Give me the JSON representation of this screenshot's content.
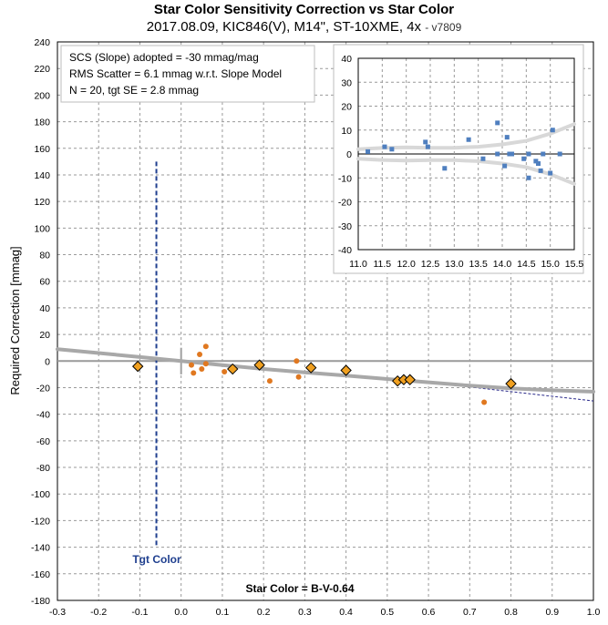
{
  "title": "Star Color Sensitivity Correction vs Star Color",
  "subtitle": "2017.08.09, KIC846(V), M14\", ST-10XME, 4x",
  "version": "- v7809",
  "annotations": {
    "line1": "SCS (Slope) adopted  =  -30 mmag/mag",
    "line2": "RMS Scatter = 6.1 mmag w.r.t. Slope Model",
    "line3": "N = 20,  tgt SE = 2.8 mmag",
    "tgt_color_label": "Tgt Color",
    "xlabel": "Star Color = B-V-0.64"
  },
  "colors": {
    "diamond_fill": "#f0a020",
    "dot": "#e07820",
    "model_curve": "#a8a8a8",
    "tgt_line": "#1f3f8f",
    "inset_point": "#4f7fbf",
    "inset_band": "#d8d8d8"
  },
  "chart_data": [
    {
      "type": "scatter",
      "title": "Star Color Sensitivity Correction vs Star Color",
      "xlabel": "Star Color = B-V-0.64",
      "ylabel": "Required Correction [mmag]",
      "xlim": [
        -0.3,
        1.0
      ],
      "ylim": [
        -180,
        240
      ],
      "xticks": [
        "-0.3",
        "-0.2",
        "-0.1",
        "0.0",
        "0.1",
        "0.2",
        "0.3",
        "0.4",
        "0.5",
        "0.6",
        "0.7",
        "0.8",
        "0.9",
        "1.0"
      ],
      "yticks": [
        "240",
        "220",
        "200",
        "180",
        "160",
        "140",
        "120",
        "100",
        "80",
        "60",
        "40",
        "20",
        "0",
        "-20",
        "-40",
        "-60",
        "-80",
        "-100",
        "-120",
        "-140",
        "-160",
        "-180"
      ],
      "grid": true,
      "tgt_color_x": -0.06,
      "series": [
        {
          "marker": "diamond",
          "points": [
            [
              -0.105,
              -4
            ],
            [
              0.125,
              -6
            ],
            [
              0.19,
              -3
            ],
            [
              0.315,
              -5
            ],
            [
              0.4,
              -7
            ],
            [
              0.525,
              -15
            ],
            [
              0.54,
              -14
            ],
            [
              0.555,
              -14
            ],
            [
              0.8,
              -17
            ]
          ]
        },
        {
          "marker": "dot",
          "points": [
            [
              0.025,
              -3
            ],
            [
              0.03,
              -9
            ],
            [
              0.045,
              5
            ],
            [
              0.05,
              -6
            ],
            [
              0.06,
              11
            ],
            [
              0.06,
              -2
            ],
            [
              0.105,
              -8
            ],
            [
              0.215,
              -15
            ],
            [
              0.28,
              0
            ],
            [
              0.285,
              -12
            ],
            [
              0.735,
              -31
            ]
          ]
        }
      ],
      "model_curve": [
        [
          -0.3,
          9
        ],
        [
          -0.2,
          6
        ],
        [
          -0.1,
          3
        ],
        [
          0.0,
          0
        ],
        [
          0.1,
          -3
        ],
        [
          0.2,
          -6
        ],
        [
          0.3,
          -8.5
        ],
        [
          0.4,
          -11
        ],
        [
          0.5,
          -13.5
        ],
        [
          0.6,
          -16
        ],
        [
          0.7,
          -18.5
        ],
        [
          0.8,
          -20.5
        ],
        [
          0.9,
          -22
        ],
        [
          1.0,
          -23
        ]
      ],
      "linear_model": [
        [
          0.6,
          -16
        ],
        [
          1.0,
          -30
        ]
      ]
    },
    {
      "type": "scatter",
      "xlim": [
        11.0,
        15.5
      ],
      "ylim": [
        -40,
        40
      ],
      "xticks": [
        "11.0",
        "11.5",
        "12.0",
        "12.5",
        "13.0",
        "13.5",
        "14.0",
        "14.5",
        "15.0",
        "15.5"
      ],
      "yticks": [
        "40",
        "30",
        "20",
        "10",
        "0",
        "-10",
        "-20",
        "-30",
        "-40"
      ],
      "grid": true,
      "points": [
        [
          11.2,
          1
        ],
        [
          11.55,
          3
        ],
        [
          11.7,
          2
        ],
        [
          12.4,
          5
        ],
        [
          12.45,
          3
        ],
        [
          12.8,
          -6
        ],
        [
          13.3,
          6
        ],
        [
          13.6,
          -2
        ],
        [
          13.9,
          0
        ],
        [
          13.9,
          13
        ],
        [
          14.05,
          -5
        ],
        [
          14.1,
          7
        ],
        [
          14.15,
          0
        ],
        [
          14.2,
          0
        ],
        [
          14.45,
          -2
        ],
        [
          14.55,
          0
        ],
        [
          14.55,
          -10
        ],
        [
          14.7,
          -3
        ],
        [
          14.75,
          -4
        ],
        [
          14.8,
          -7
        ],
        [
          14.85,
          0
        ],
        [
          15.0,
          -8
        ],
        [
          15.05,
          10
        ],
        [
          15.2,
          0
        ]
      ],
      "band_upper": [
        [
          11.0,
          2
        ],
        [
          11.5,
          2.5
        ],
        [
          12.0,
          2.8
        ],
        [
          12.5,
          2.6
        ],
        [
          13.0,
          2.6
        ],
        [
          13.5,
          3
        ],
        [
          14.0,
          4
        ],
        [
          14.5,
          5.5
        ],
        [
          15.0,
          8.5
        ],
        [
          15.5,
          12.5
        ]
      ],
      "band_lower": [
        [
          11.0,
          -2
        ],
        [
          11.5,
          -2.5
        ],
        [
          12.0,
          -2.8
        ],
        [
          12.5,
          -2.6
        ],
        [
          13.0,
          -2.6
        ],
        [
          13.5,
          -3
        ],
        [
          14.0,
          -4
        ],
        [
          14.5,
          -5.5
        ],
        [
          15.0,
          -8.5
        ],
        [
          15.5,
          -12.5
        ]
      ]
    }
  ]
}
